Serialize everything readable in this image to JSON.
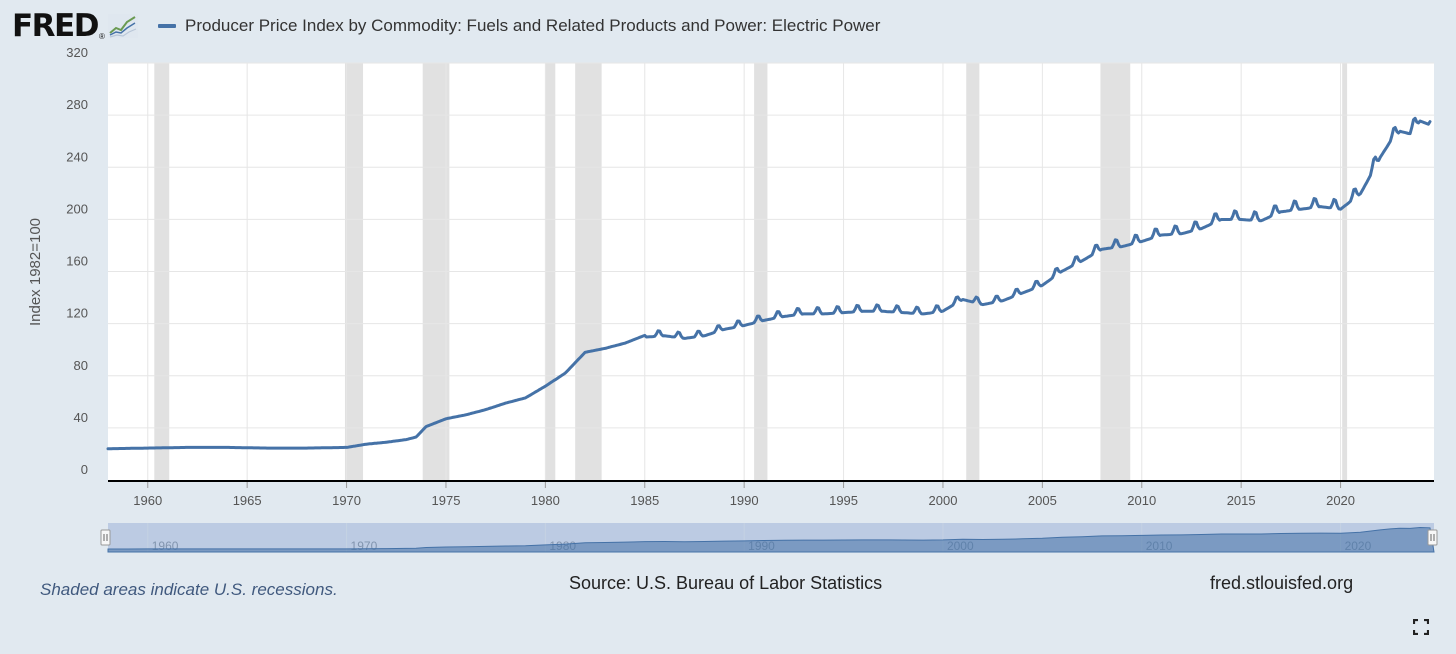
{
  "brand": {
    "logo_text": "FRED",
    "logo_mark": "®",
    "spark_icon": "line-chart-icon"
  },
  "colors": {
    "background": "#e1e9f0",
    "plot_bg": "#ffffff",
    "series": "#4572a7",
    "recession": "#e1e1e1",
    "navigator": "#bccbe3"
  },
  "footer": {
    "recession_note": "Shaded areas indicate U.S. recessions.",
    "source": "Source: U.S. Bureau of Labor Statistics",
    "site": "fred.stlouisfed.org"
  },
  "chart_data": {
    "type": "line",
    "title": "",
    "series": [
      {
        "name": "Producer Price Index by Commodity: Fuels and Related Products and Power: Electric Power",
        "x": [
          1958.0,
          1960.0,
          1962.0,
          1964.0,
          1966.0,
          1968.0,
          1970.0,
          1971.0,
          1972.0,
          1973.0,
          1973.5,
          1974.0,
          1974.5,
          1975.0,
          1976.0,
          1977.0,
          1978.0,
          1979.0,
          1980.0,
          1981.0,
          1982.0,
          1983.0,
          1984.0,
          1985.0,
          1986.0,
          1987.0,
          1988.0,
          1989.0,
          1990.0,
          1991.0,
          1992.0,
          1993.0,
          1994.0,
          1995.0,
          1996.0,
          1997.0,
          1998.0,
          1999.0,
          2000.0,
          2001.0,
          2002.0,
          2003.0,
          2004.0,
          2005.0,
          2006.0,
          2007.0,
          2008.0,
          2009.0,
          2010.0,
          2011.0,
          2012.0,
          2013.0,
          2014.0,
          2015.0,
          2016.0,
          2017.0,
          2018.0,
          2019.0,
          2020.0,
          2021.0,
          2022.0,
          2022.5,
          2023.0,
          2023.5,
          2024.0,
          2024.5
        ],
        "values": [
          24,
          24.5,
          25,
          25,
          24.5,
          24.5,
          25,
          27.5,
          29,
          31,
          33,
          41,
          44,
          47,
          50,
          54,
          59,
          63,
          72,
          82,
          98,
          101,
          105,
          111,
          112,
          110,
          112,
          117,
          120,
          124,
          127,
          129,
          129,
          130,
          131,
          131,
          130,
          129,
          131,
          140,
          136,
          139,
          145,
          151,
          162,
          170,
          179,
          181,
          185,
          190,
          191,
          195,
          202,
          202,
          201,
          208,
          210,
          212,
          210,
          222,
          250,
          262,
          270,
          268,
          278,
          275
        ]
      }
    ],
    "ylabel": "Index 1982=100",
    "xlabel": "",
    "ylim": [
      0,
      320
    ],
    "xlim": [
      1958.0,
      2024.7
    ],
    "yticks": [
      0,
      40,
      80,
      120,
      160,
      200,
      240,
      280,
      320
    ],
    "xticks": [
      1960,
      1965,
      1970,
      1975,
      1980,
      1985,
      1990,
      1995,
      2000,
      2005,
      2010,
      2015,
      2020
    ],
    "navigator_ticks": [
      1960,
      1970,
      1980,
      1990,
      2000,
      2010,
      2020
    ],
    "recessions": [
      [
        1960.33,
        1961.08
      ],
      [
        1969.92,
        1970.83
      ],
      [
        1973.83,
        1975.17
      ],
      [
        1980.0,
        1980.5
      ],
      [
        1981.5,
        1982.83
      ],
      [
        1990.5,
        1991.17
      ],
      [
        2001.17,
        2001.83
      ],
      [
        2007.92,
        2009.42
      ],
      [
        2020.08,
        2020.33
      ]
    ],
    "grid": true,
    "legend": "top-left"
  }
}
